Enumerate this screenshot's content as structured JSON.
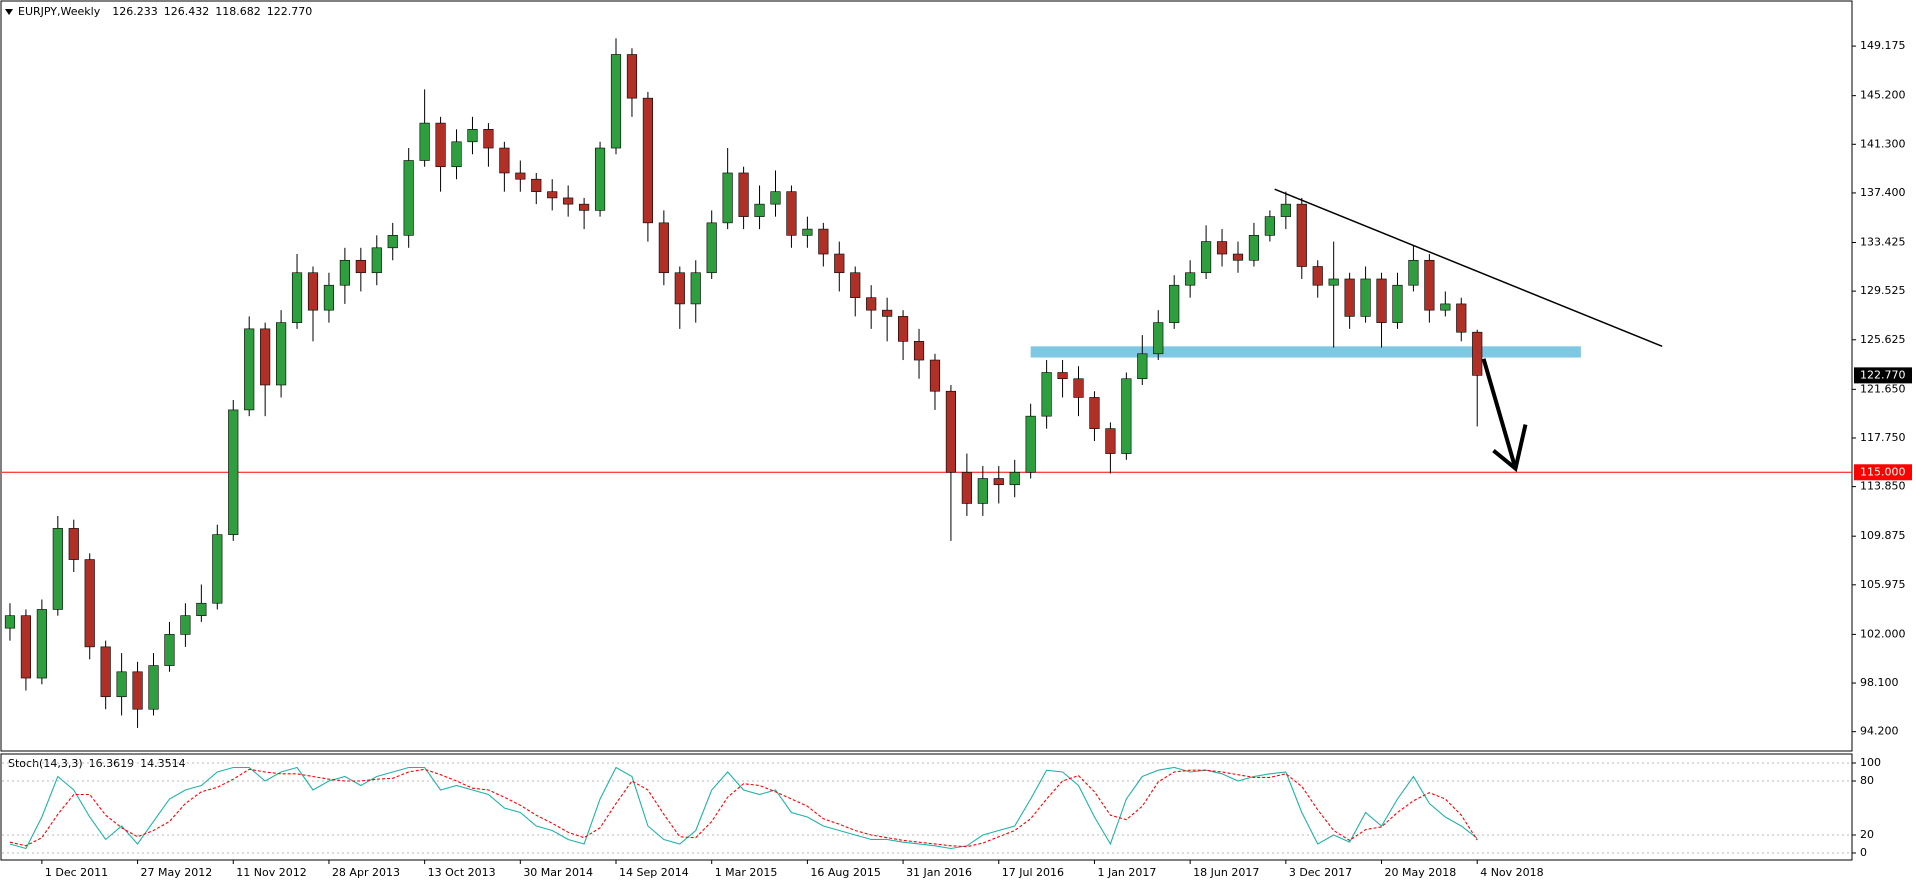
{
  "chart_data": [
    {
      "type": "candlestick",
      "title": "EURJPY,Weekly",
      "title_values": [
        "126.233",
        "126.432",
        "118.682",
        "122.770"
      ],
      "categories": [
        null,
        null,
        "1 Dec 2011",
        null,
        null,
        null,
        null,
        null,
        "27 May 2012",
        null,
        null,
        null,
        null,
        null,
        "11 Nov 2012",
        null,
        null,
        null,
        null,
        null,
        "28 Apr 2013",
        null,
        null,
        null,
        null,
        null,
        "13 Oct 2013",
        null,
        null,
        null,
        null,
        null,
        "30 Mar 2014",
        null,
        null,
        null,
        null,
        null,
        "14 Sep 2014",
        null,
        null,
        null,
        null,
        null,
        "1 Mar 2015",
        null,
        null,
        null,
        null,
        null,
        "16 Aug 2015",
        null,
        null,
        null,
        null,
        null,
        "31 Jan 2016",
        null,
        null,
        null,
        null,
        null,
        "17 Jul 2016",
        null,
        null,
        null,
        null,
        null,
        "1 Jan 2017",
        null,
        null,
        null,
        null,
        null,
        "18 Jun 2017",
        null,
        null,
        null,
        null,
        null,
        "3 Dec 2017",
        null,
        null,
        null,
        null,
        null,
        "20 May 2018",
        null,
        null,
        null,
        null,
        null,
        "4 Nov 2018"
      ],
      "open": [
        102.5,
        103.5,
        98.5,
        104,
        110.5,
        108,
        101,
        97,
        99,
        96,
        99.5,
        102,
        103.5,
        104.5,
        110,
        120,
        126.5,
        122,
        127,
        131,
        128,
        130,
        132,
        131,
        133,
        134,
        140,
        143,
        139.5,
        141.5,
        142.5,
        141,
        139,
        138.5,
        137.5,
        137,
        136.5,
        136,
        141,
        148.5,
        145,
        135,
        131,
        128.5,
        131,
        135,
        139,
        135.5,
        136.5,
        137.5,
        134,
        134.5,
        132.5,
        131,
        129,
        128,
        127.5,
        125.5,
        124,
        121.5,
        115,
        112.5,
        114.5,
        114,
        115,
        119.5,
        123,
        122.5,
        121,
        118.5,
        116.5,
        122.5,
        124.5,
        127,
        130,
        131,
        133.5,
        132.5,
        132,
        134,
        135.5,
        136.5,
        131.5,
        130,
        130.5,
        127.5,
        130.5,
        127,
        130,
        132,
        128,
        128.5,
        126.233
      ],
      "high": [
        104.5,
        104,
        104.8,
        111.5,
        111.2,
        108.5,
        101.5,
        100.5,
        99.8,
        100.5,
        103,
        104.5,
        106,
        110.8,
        120.8,
        127.5,
        127,
        128,
        132.5,
        131.5,
        131,
        133,
        133,
        134,
        135,
        141,
        145.7,
        143.5,
        142.5,
        143.5,
        143,
        141.5,
        140,
        139,
        138.5,
        138,
        137,
        141.5,
        149.8,
        149,
        145.5,
        136,
        131.5,
        132,
        136,
        141,
        139.5,
        138,
        139.2,
        138,
        135.5,
        135,
        133.5,
        131.5,
        130,
        129,
        128,
        126.5,
        124.5,
        122,
        116.5,
        115.5,
        115.5,
        116,
        120.5,
        124,
        124,
        123.5,
        121.5,
        119,
        123,
        126,
        128,
        130.8,
        132,
        134.8,
        134.5,
        133.5,
        135,
        136,
        137.5,
        137,
        132,
        133.5,
        131,
        131.5,
        131,
        131,
        133.2,
        132.5,
        129.5,
        129,
        126.432
      ],
      "low": [
        101.5,
        97.5,
        98,
        103.5,
        107,
        100,
        96,
        95.5,
        94.5,
        95.5,
        99,
        101,
        103,
        104,
        109.5,
        119.5,
        119.5,
        121,
        126.5,
        125.5,
        127,
        128.5,
        129.5,
        130,
        132,
        133,
        139.5,
        137.5,
        138.5,
        140.5,
        139.5,
        137.5,
        137.5,
        136.5,
        136,
        135.5,
        134.5,
        135.5,
        140.5,
        143.5,
        133.5,
        130,
        126.5,
        127,
        130.5,
        134.5,
        134.5,
        134.5,
        135.5,
        133,
        133,
        131.5,
        129.5,
        127.5,
        126.5,
        125.5,
        124,
        122.5,
        120,
        109.5,
        111.5,
        111.5,
        112.5,
        113,
        114.5,
        118.5,
        121,
        119.5,
        117.5,
        114.9,
        116,
        122,
        124,
        126.5,
        129,
        130.5,
        131.5,
        131,
        131.5,
        133.5,
        134.5,
        130.5,
        129,
        125,
        126.5,
        127,
        125,
        126.5,
        129.5,
        127,
        127.5,
        125.5,
        118.682
      ],
      "close": [
        103.5,
        98.5,
        104,
        110.5,
        108,
        101,
        97,
        99,
        96,
        99.5,
        102,
        103.5,
        104.5,
        110,
        120,
        126.5,
        122,
        127,
        131,
        128,
        130,
        132,
        131,
        133,
        134,
        140,
        143,
        139.5,
        141.5,
        142.5,
        141,
        139,
        138.5,
        137.5,
        137,
        136.5,
        136,
        141,
        148.5,
        145,
        135,
        131,
        128.5,
        131,
        135,
        139,
        135.5,
        136.5,
        137.5,
        134,
        134.5,
        132.5,
        131,
        129,
        128,
        127.5,
        125.5,
        124,
        121.5,
        115,
        112.5,
        114.5,
        114,
        115,
        119.5,
        123,
        122.5,
        121,
        118.5,
        116.5,
        122.5,
        124.5,
        127,
        130,
        131,
        133.5,
        132.5,
        132,
        134,
        135.5,
        136.5,
        131.5,
        130,
        130.5,
        127.5,
        130.5,
        127,
        130,
        132,
        128,
        128.5,
        126.23,
        122.77
      ],
      "up_color": "#2e9e3e",
      "down_color": "#b03028",
      "xlim": [
        -0.5,
        115.5
      ],
      "ylim": [
        92.73,
        152.71
      ],
      "yticks": [
        149.175,
        {
          "value": 145.2,
          "label": "145.200"
        },
        {
          "value": 141.3,
          "label": "141.300"
        },
        {
          "value": 137.4,
          "label": "137.400"
        },
        133.425,
        129.525,
        125.625,
        {
          "value": 121.65,
          "label": "121.650"
        },
        {
          "value": 117.75,
          "label": "117.750"
        },
        {
          "value": 113.85,
          "label": "113.850"
        },
        109.875,
        105.975,
        {
          "value": 102,
          "label": "102.000"
        },
        {
          "value": 98.1,
          "label": "98.100"
        },
        {
          "value": 94.2,
          "label": "94.200"
        }
      ],
      "last_price": {
        "value": 122.77,
        "label": "122.770"
      },
      "level_line": {
        "value": 115,
        "label": "115.000",
        "color": "#ff0000"
      },
      "support_zone": {
        "x": [
          64,
          98.5
        ],
        "y": [
          124.2,
          125.1
        ],
        "color": "#7ec8e3"
      },
      "trendline": {
        "x": [
          79.3,
          103.6
        ],
        "y": [
          137.7,
          125.1
        ]
      },
      "arrow": {
        "x": [
          92.4,
          94.4
        ],
        "y": [
          124.1,
          115.3
        ]
      }
    },
    {
      "type": "line",
      "title": "Stoch(14,3,3)",
      "title_values": [
        "16.3619",
        "14.3514"
      ],
      "ylim": [
        -7.8,
        110
      ],
      "yticks": [
        0,
        20,
        80,
        100
      ],
      "series": [
        {
          "name": "Main",
          "color": "#20b2aa",
          "values": [
            10,
            5,
            40,
            85,
            70,
            40,
            15,
            30,
            10,
            35,
            60,
            70,
            75,
            90,
            95,
            95,
            80,
            90,
            95,
            70,
            80,
            85,
            75,
            85,
            90,
            95,
            95,
            70,
            75,
            70,
            65,
            50,
            45,
            30,
            25,
            15,
            10,
            60,
            95,
            85,
            30,
            15,
            10,
            25,
            70,
            90,
            70,
            65,
            70,
            45,
            40,
            30,
            25,
            20,
            15,
            15,
            12,
            10,
            8,
            5,
            8,
            20,
            25,
            30,
            60,
            92,
            90,
            75,
            40,
            10,
            60,
            85,
            92,
            95,
            90,
            92,
            88,
            80,
            85,
            88,
            90,
            45,
            10,
            20,
            12,
            45,
            30,
            60,
            85,
            55,
            40,
            30,
            16.36
          ]
        },
        {
          "name": "Signal",
          "color": "#ff0000",
          "values": [
            12,
            8,
            17,
            43,
            65,
            65,
            42,
            28,
            18,
            25,
            35,
            55,
            68,
            73,
            82,
            93,
            90,
            88,
            88,
            85,
            82,
            80,
            80,
            82,
            83,
            90,
            93,
            87,
            80,
            72,
            70,
            62,
            53,
            42,
            33,
            23,
            17,
            28,
            55,
            80,
            70,
            43,
            18,
            17,
            35,
            62,
            77,
            75,
            68,
            60,
            52,
            38,
            32,
            25,
            20,
            17,
            14,
            12,
            10,
            8,
            7,
            11,
            18,
            25,
            38,
            60,
            80,
            86,
            68,
            42,
            37,
            52,
            79,
            90,
            92,
            92,
            90,
            87,
            84,
            84,
            88,
            74,
            48,
            25,
            14,
            26,
            29,
            45,
            58,
            67,
            60,
            42,
            14.35
          ]
        }
      ]
    }
  ]
}
